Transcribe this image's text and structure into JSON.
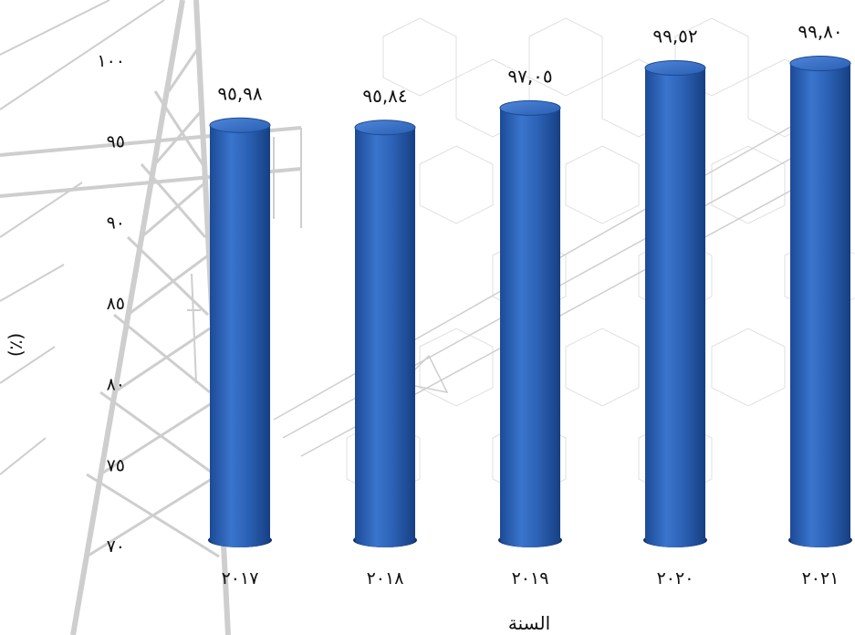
{
  "chart_data": {
    "type": "bar",
    "title": "",
    "xlabel": "السنة",
    "ylabel": "(٪)",
    "categories": [
      "٢٠١٧",
      "٢٠١٨",
      "٢٠١٩",
      "٢٠٢٠",
      "٢٠٢١"
    ],
    "values": [
      95.98,
      95.84,
      97.05,
      99.52,
      99.8
    ],
    "value_labels": [
      "٩٥,٩٨",
      "٩٥,٨٤",
      "٩٧,٠٥",
      "٩٩,٥٢",
      "٩٩,٨٠"
    ],
    "ylim": [
      70,
      100
    ],
    "yticks": [
      {
        "value": 70,
        "label": "٧٠"
      },
      {
        "value": 75,
        "label": "٧٥"
      },
      {
        "value": 80,
        "label": "٨٠"
      },
      {
        "value": 85,
        "label": "٨٥"
      },
      {
        "value": 90,
        "label": "٩٠"
      },
      {
        "value": 95,
        "label": "٩٥"
      },
      {
        "value": 100,
        "label": "١٠٠"
      }
    ],
    "grid": false,
    "legend": "none",
    "bar_style": "3d-cylinder",
    "bar_color": "#2a62b8",
    "bar_color_dark": "#1a4793",
    "bar_color_light": "#4f86d9"
  }
}
